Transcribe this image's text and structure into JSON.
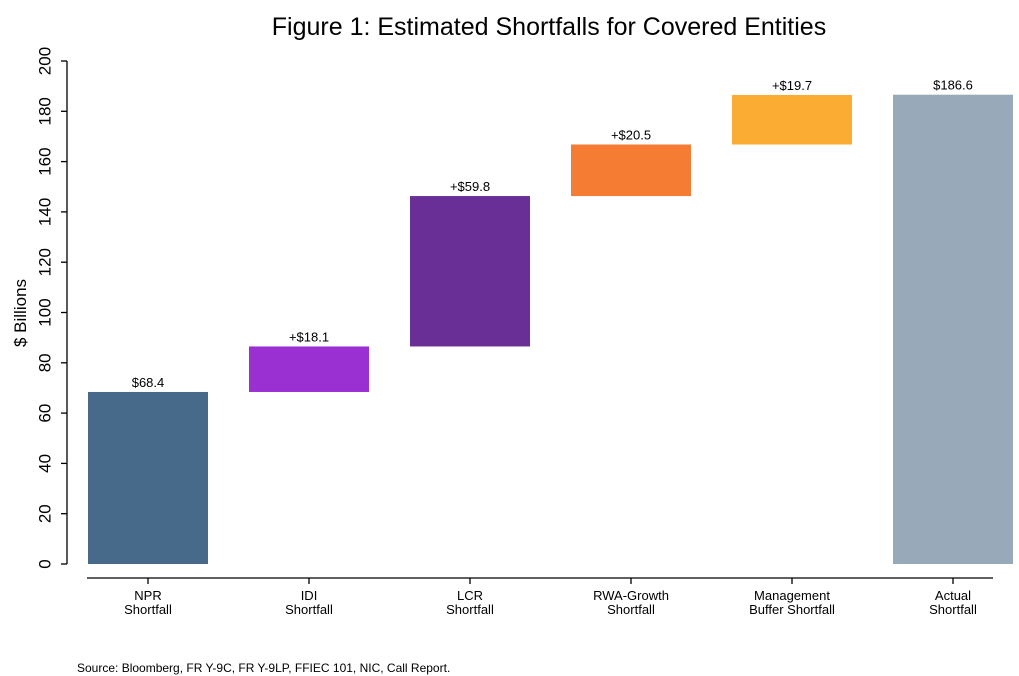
{
  "chart_data": {
    "type": "bar",
    "subtype": "waterfall",
    "title": "Figure 1: Estimated Shortfalls for Covered Entities",
    "ylabel": "$ Billions",
    "xlabel": "",
    "ylim": [
      0,
      200
    ],
    "yticks": [
      0,
      20,
      40,
      60,
      80,
      100,
      120,
      140,
      160,
      180,
      200
    ],
    "grid": false,
    "categories": [
      [
        "NPR",
        "Shortfall"
      ],
      [
        "IDI",
        "Shortfall"
      ],
      [
        "LCR",
        "Shortfall"
      ],
      [
        "RWA-Growth",
        "Shortfall"
      ],
      [
        "Management",
        "Buffer Shortfall"
      ],
      [
        "Actual",
        "Shortfall"
      ]
    ],
    "bars": [
      {
        "base": 0,
        "value": 68.4,
        "label": "$68.4",
        "color": "#476a8a"
      },
      {
        "base": 68.4,
        "value": 18.1,
        "label": "+$18.1",
        "color": "#9a30d1"
      },
      {
        "base": 86.5,
        "value": 59.8,
        "label": "+$59.8",
        "color": "#6a2f96"
      },
      {
        "base": 146.3,
        "value": 20.5,
        "label": "+$20.5",
        "color": "#f57c33"
      },
      {
        "base": 166.8,
        "value": 19.7,
        "label": "+$19.7",
        "color": "#fbac32"
      },
      {
        "base": 0,
        "value": 186.6,
        "label": "$186.6",
        "color": "#98a9ba"
      }
    ],
    "source": "Source: Bloomberg, FR Y-9C, FR Y-9LP, FFIEC 101, NIC, Call Report."
  }
}
